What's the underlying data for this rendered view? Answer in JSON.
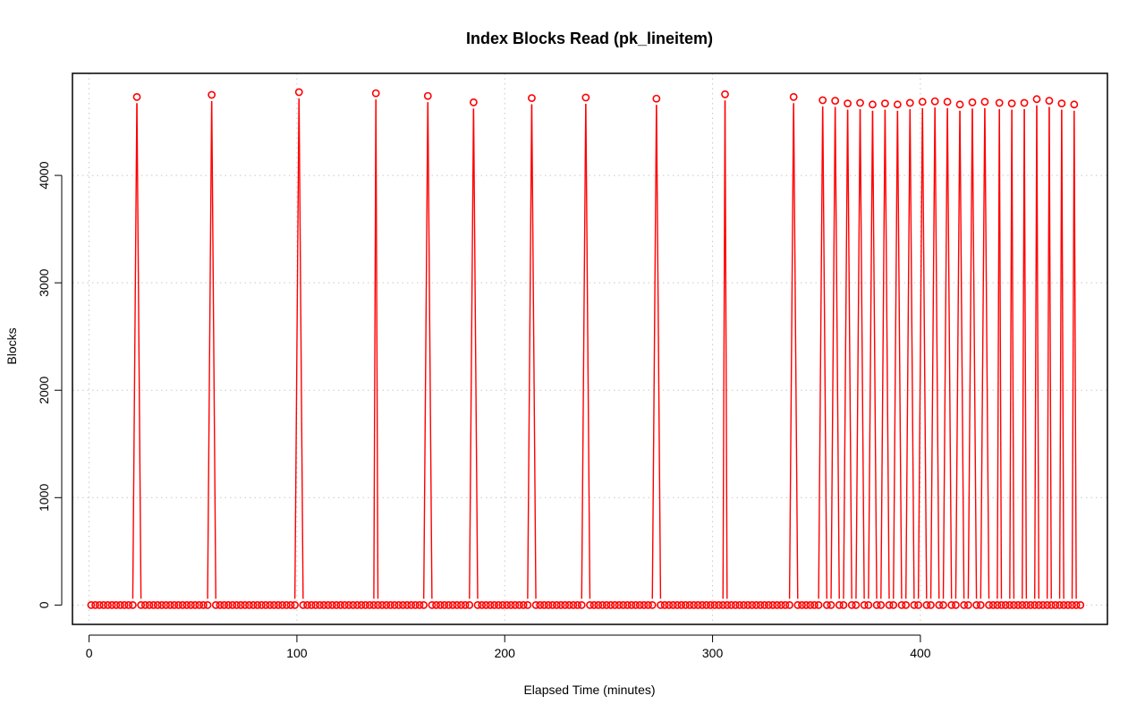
{
  "chart_data": {
    "type": "line",
    "title": "Index Blocks Read (pk_lineitem)",
    "xlabel": "Elapsed Time (minutes)",
    "ylabel": "Blocks",
    "xlim": [
      -8,
      490
    ],
    "ylim": [
      -180,
      4950
    ],
    "xticks": [
      0,
      100,
      200,
      300,
      400
    ],
    "yticks": [
      0,
      1000,
      2000,
      3000,
      4000
    ],
    "grid": true,
    "series_color": "#ff0000",
    "marker": "open-circle",
    "baseline_range": [
      1,
      477
    ],
    "baseline_step": 2,
    "baseline_value": 0,
    "spikes": [
      {
        "x": 23,
        "y": 4730
      },
      {
        "x": 59,
        "y": 4750
      },
      {
        "x": 101,
        "y": 4775
      },
      {
        "x": 138,
        "y": 4765
      },
      {
        "x": 163,
        "y": 4740
      },
      {
        "x": 185,
        "y": 4680
      },
      {
        "x": 213,
        "y": 4720
      },
      {
        "x": 239,
        "y": 4725
      },
      {
        "x": 273,
        "y": 4715
      },
      {
        "x": 306,
        "y": 4755
      },
      {
        "x": 339,
        "y": 4730
      },
      {
        "x": 353,
        "y": 4700
      },
      {
        "x": 359,
        "y": 4695
      },
      {
        "x": 365,
        "y": 4670
      },
      {
        "x": 371,
        "y": 4675
      },
      {
        "x": 377,
        "y": 4660
      },
      {
        "x": 383,
        "y": 4670
      },
      {
        "x": 389,
        "y": 4660
      },
      {
        "x": 395,
        "y": 4675
      },
      {
        "x": 401,
        "y": 4685
      },
      {
        "x": 407,
        "y": 4690
      },
      {
        "x": 413,
        "y": 4685
      },
      {
        "x": 419,
        "y": 4660
      },
      {
        "x": 425,
        "y": 4680
      },
      {
        "x": 431,
        "y": 4685
      },
      {
        "x": 438,
        "y": 4675
      },
      {
        "x": 444,
        "y": 4670
      },
      {
        "x": 450,
        "y": 4675
      },
      {
        "x": 456,
        "y": 4710
      },
      {
        "x": 462,
        "y": 4695
      },
      {
        "x": 468,
        "y": 4670
      },
      {
        "x": 474,
        "y": 4660
      }
    ]
  }
}
